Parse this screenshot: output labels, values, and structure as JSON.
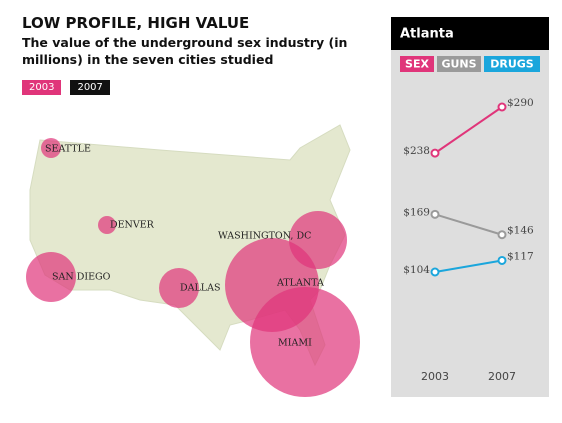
{
  "header": {
    "title": "LOW PROFILE, HIGH VALUE",
    "subtitle": "The value of the underground sex industry (in millions) in the seven cities studied"
  },
  "legend": [
    "2003",
    "2007"
  ],
  "map": {
    "cities": [
      "SEATTLE",
      "DENVER",
      "WASHINGTON, DC",
      "SAN DIEGO",
      "DALLAS",
      "ATLANTA",
      "MIAMI"
    ]
  },
  "chart_data": {
    "type": "line",
    "title": "Atlanta",
    "categories": [
      "2003",
      "2007"
    ],
    "series": [
      {
        "name": "SEX",
        "color": "#e0357a",
        "values": [
          238,
          290
        ],
        "value_labels": [
          "$238",
          "$290"
        ]
      },
      {
        "name": "GUNS",
        "color": "#9a9a9a",
        "values": [
          169,
          146
        ],
        "value_labels": [
          "$169",
          "$146"
        ]
      },
      {
        "name": "DRUGS",
        "color": "#1ba6dc",
        "values": [
          104,
          117
        ],
        "value_labels": [
          "$104",
          "$117"
        ]
      }
    ]
  }
}
